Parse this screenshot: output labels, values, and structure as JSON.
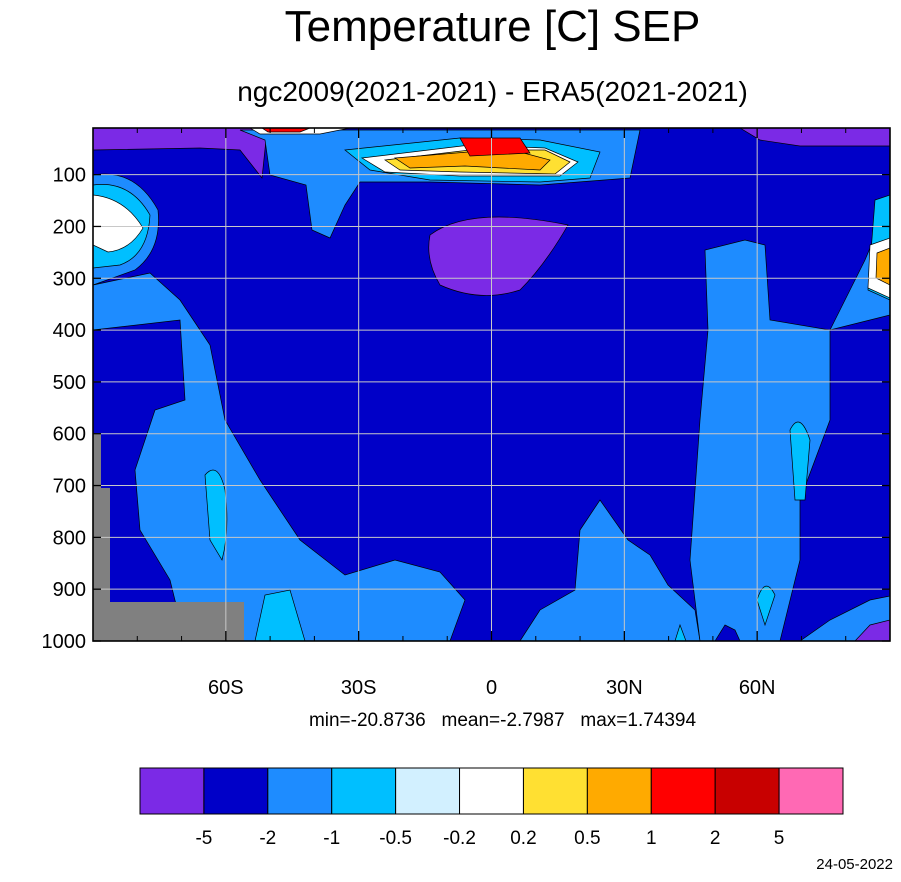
{
  "chart_data": {
    "type": "heatmap",
    "title": "Temperature [C] SEP",
    "subtitle": "ngc2009(2021-2021) - ERA5(2021-2021)",
    "x_ticks": [
      "60S",
      "30S",
      "0",
      "30N",
      "60N"
    ],
    "x_tick_values": [
      -60,
      -30,
      0,
      30,
      60
    ],
    "xlim": [
      -90,
      90
    ],
    "y_ticks": [
      "100",
      "200",
      "300",
      "400",
      "500",
      "600",
      "700",
      "800",
      "900",
      "1000"
    ],
    "y_tick_values": [
      100,
      200,
      300,
      400,
      500,
      600,
      700,
      800,
      900,
      1000
    ],
    "ylim": [
      10,
      1000
    ],
    "y_inverted": true,
    "grid": true,
    "stats": {
      "min": "-20.8736",
      "mean": "-2.7987",
      "max": "1.74394"
    },
    "colorbar": {
      "colors": [
        "#7b2ae6",
        "#0000c8",
        "#1e8cff",
        "#00bfff",
        "#d2f0ff",
        "#ffffff",
        "#ffe032",
        "#ffaa00",
        "#ff0000",
        "#c80000",
        "#ff69b4"
      ],
      "labels": [
        "-5",
        "-2",
        "-1",
        "-0.5",
        "-0.2",
        "0.2",
        "0.5",
        "1",
        "2",
        "5"
      ]
    },
    "missing_color": "#808080"
  },
  "footer": {
    "date": "24-05-2022"
  },
  "stats_text": "min=-20.8736   mean=-2.7987   max=1.74394"
}
